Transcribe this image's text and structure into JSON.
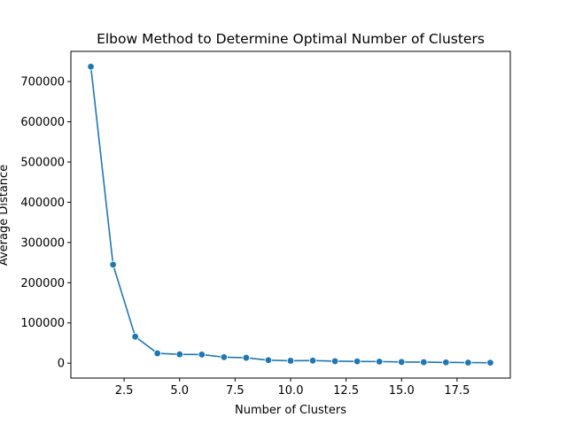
{
  "chart_data": {
    "type": "line",
    "title": "Elbow Method to Determine Optimal Number of Clusters",
    "xlabel": "Number of Clusters",
    "ylabel": "Average Distance",
    "xlim": [
      0.1,
      19.9
    ],
    "ylim": [
      -37000,
      775000
    ],
    "x_ticks": [
      2.5,
      5.0,
      7.5,
      10.0,
      12.5,
      15.0,
      17.5
    ],
    "x_tick_labels": [
      "2.5",
      "5.0",
      "7.5",
      "10.0",
      "12.5",
      "15.0",
      "17.5"
    ],
    "y_ticks": [
      0,
      100000,
      200000,
      300000,
      400000,
      500000,
      600000,
      700000
    ],
    "y_tick_labels": [
      "0",
      "100000",
      "200000",
      "300000",
      "400000",
      "500000",
      "600000",
      "700000"
    ],
    "grid": false,
    "marker": "circle",
    "series": [
      {
        "color": "#1f77b4",
        "x": [
          1,
          2,
          3,
          4,
          5,
          6,
          7,
          8,
          9,
          10,
          11,
          12,
          13,
          14,
          15,
          16,
          17,
          18,
          19
        ],
        "values": [
          737000,
          245000,
          66000,
          24500,
          22000,
          21500,
          15000,
          13500,
          7500,
          6000,
          6500,
          5000,
          4500,
          4000,
          3000,
          2500,
          2000,
          1500,
          1200
        ]
      }
    ]
  }
}
